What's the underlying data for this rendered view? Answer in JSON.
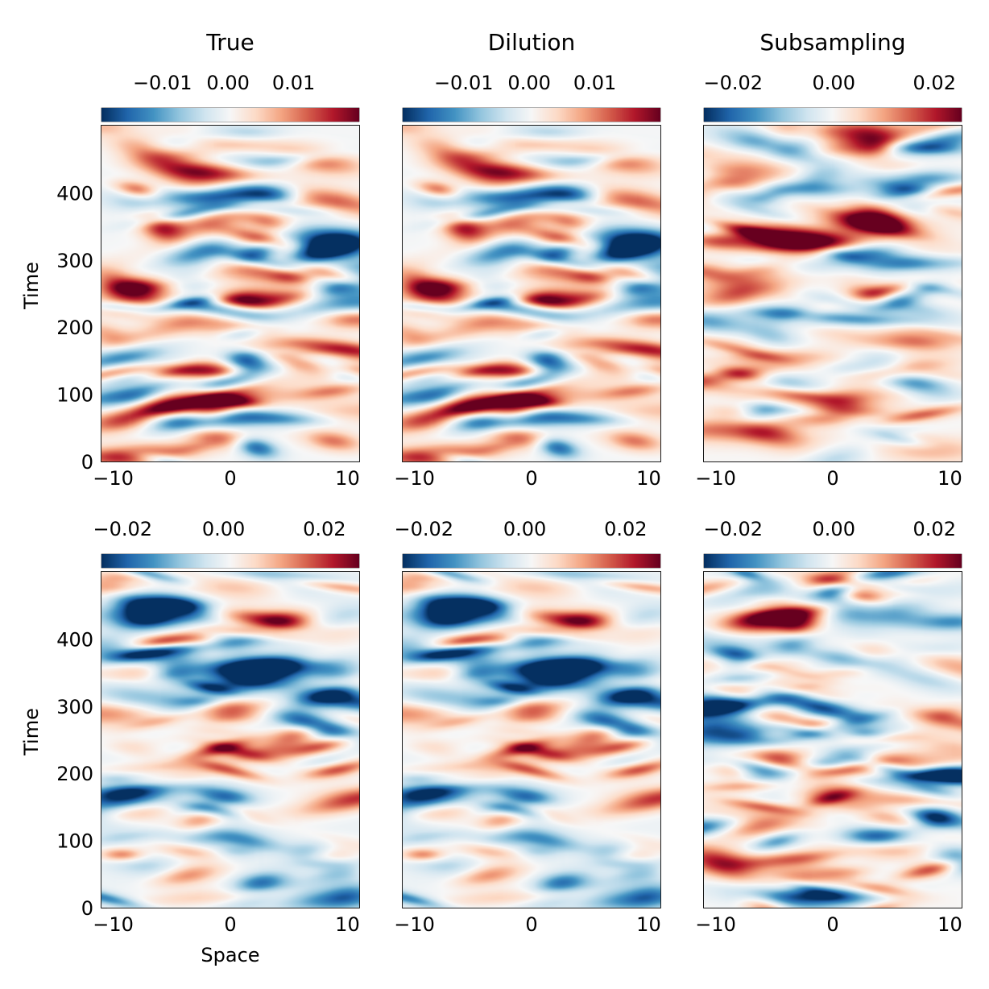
{
  "chart_data": {
    "type": "heatmap",
    "colormap": "RdBu_r",
    "colormap_stops": [
      "#053061",
      "#2166ac",
      "#4393c3",
      "#92c5de",
      "#d1e5f0",
      "#f7f7f7",
      "#fddbc7",
      "#f4a582",
      "#d6604d",
      "#b2182b",
      "#67001f"
    ],
    "panels": [
      {
        "title": "True",
        "row": 0,
        "col": 0,
        "clim": [
          -0.0193,
          0.02
        ],
        "cbar_ticks": [
          -0.01,
          0.0,
          0.01
        ],
        "cbar_tick_labels": [
          "−0.01",
          "0.00",
          "0.01"
        ],
        "xlim": [
          -11,
          11
        ],
        "ylim": [
          0,
          500
        ],
        "xticks": [
          -10,
          0,
          10
        ],
        "xtick_labels": [
          "−10",
          "0",
          "10"
        ],
        "yticks": [
          0,
          100,
          200,
          300,
          400
        ],
        "ytick_labels": [
          "0",
          "100",
          "200",
          "300",
          "400"
        ],
        "xlabel": "",
        "ylabel": "Time",
        "pattern_seed": 11,
        "amplitude": 0.014
      },
      {
        "title": "Dilution",
        "row": 0,
        "col": 1,
        "clim": [
          -0.0193,
          0.02
        ],
        "cbar_ticks": [
          -0.01,
          0.0,
          0.01
        ],
        "cbar_tick_labels": [
          "−0.01",
          "0.00",
          "0.01"
        ],
        "xlim": [
          -11,
          11
        ],
        "ylim": [
          0,
          500
        ],
        "xticks": [
          -10,
          0,
          10
        ],
        "xtick_labels": [
          "−10",
          "0",
          "10"
        ],
        "yticks": [],
        "ytick_labels": [],
        "xlabel": "",
        "ylabel": "",
        "pattern_seed": 11,
        "amplitude": 0.014
      },
      {
        "title": "Subsampling",
        "row": 0,
        "col": 2,
        "clim": [
          -0.0258,
          0.0254
        ],
        "cbar_ticks": [
          -0.02,
          0.0,
          0.02
        ],
        "cbar_tick_labels": [
          "−0.02",
          "0.00",
          "0.02"
        ],
        "xlim": [
          -11,
          11
        ],
        "ylim": [
          0,
          500
        ],
        "xticks": [
          -10,
          0,
          10
        ],
        "xtick_labels": [
          "−10",
          "0",
          "10"
        ],
        "yticks": [],
        "ytick_labels": [],
        "xlabel": "",
        "ylabel": "",
        "pattern_seed": 29,
        "amplitude": 0.016
      },
      {
        "title": "",
        "row": 1,
        "col": 0,
        "clim": [
          -0.0242,
          0.0269
        ],
        "cbar_ticks": [
          -0.02,
          0.0,
          0.02
        ],
        "cbar_tick_labels": [
          "−0.02",
          "0.00",
          "0.02"
        ],
        "xlim": [
          -11,
          11
        ],
        "ylim": [
          0,
          500
        ],
        "xticks": [
          -10,
          0,
          10
        ],
        "xtick_labels": [
          "−10",
          "0",
          "10"
        ],
        "yticks": [
          0,
          100,
          200,
          300,
          400
        ],
        "ytick_labels": [
          "0",
          "100",
          "200",
          "300",
          "400"
        ],
        "xlabel": "Space",
        "ylabel": "Time",
        "pattern_seed": 47,
        "amplitude": 0.018
      },
      {
        "title": "",
        "row": 1,
        "col": 1,
        "clim": [
          -0.0242,
          0.0269
        ],
        "cbar_ticks": [
          -0.02,
          0.0,
          0.02
        ],
        "cbar_tick_labels": [
          "−0.02",
          "0.00",
          "0.02"
        ],
        "xlim": [
          -11,
          11
        ],
        "ylim": [
          0,
          500
        ],
        "xticks": [
          -10,
          0,
          10
        ],
        "xtick_labels": [
          "−10",
          "0",
          "10"
        ],
        "yticks": [],
        "ytick_labels": [],
        "xlabel": "",
        "ylabel": "",
        "pattern_seed": 47,
        "amplitude": 0.018
      },
      {
        "title": "",
        "row": 1,
        "col": 2,
        "clim": [
          -0.0258,
          0.0254
        ],
        "cbar_ticks": [
          -0.02,
          0.0,
          0.02
        ],
        "cbar_tick_labels": [
          "−0.02",
          "0.00",
          "0.02"
        ],
        "xlim": [
          -11,
          11
        ],
        "ylim": [
          0,
          500
        ],
        "xticks": [
          -10,
          0,
          10
        ],
        "xtick_labels": [
          "−10",
          "0",
          "10"
        ],
        "yticks": [],
        "ytick_labels": [],
        "xlabel": "",
        "ylabel": "",
        "pattern_seed": 83,
        "amplitude": 0.018
      }
    ]
  }
}
